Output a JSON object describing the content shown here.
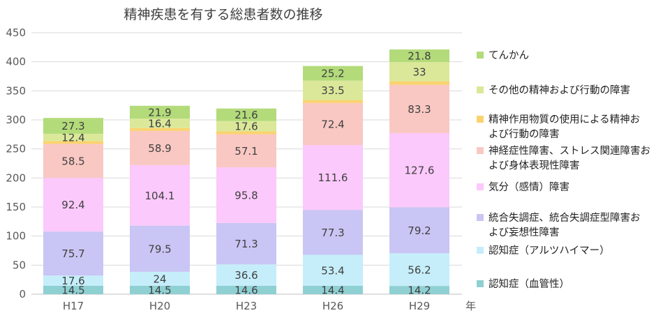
{
  "chart_data": {
    "type": "bar",
    "stacked": true,
    "title": "精神疾患を有する総患者数の推移",
    "xlabel": "年",
    "ylabel": "",
    "ylim": [
      0,
      450
    ],
    "yticks": [
      0,
      50,
      100,
      150,
      200,
      250,
      300,
      350,
      400,
      450
    ],
    "grid": true,
    "legend_position": "right",
    "categories": [
      "H17",
      "H20",
      "H23",
      "H26",
      "H29"
    ],
    "series": [
      {
        "name": "認知症（血管性）",
        "color": "#8fd0d3",
        "values": [
          14.5,
          14.5,
          14.6,
          14.4,
          14.2
        ]
      },
      {
        "name": "認知症（アルツハイマー）",
        "color": "#c5eefa",
        "values": [
          17.6,
          24,
          36.6,
          53.4,
          56.2
        ]
      },
      {
        "name": "統合失調症、統合失調症型障害および妄想性障害",
        "color": "#c9c5f4",
        "values": [
          75.7,
          79.5,
          71.3,
          77.3,
          79.2
        ]
      },
      {
        "name": "気分（感情）障害",
        "color": "#fbc9fb",
        "values": [
          92.4,
          104.1,
          95.8,
          111.6,
          127.6
        ]
      },
      {
        "name": "神経症性障害、ストレス関連障害および身体表現性障害",
        "color": "#f9c8c3",
        "values": [
          58.5,
          58.9,
          57.1,
          72.4,
          83.3
        ]
      },
      {
        "name": "精神作用物質の使用による精神および行動の障害",
        "color": "#fad36e",
        "values": [
          5.0,
          5.0,
          5.0,
          5.0,
          6.0
        ]
      },
      {
        "name": "その他の精神および行動の障害",
        "color": "#dbe89a",
        "values": [
          12.4,
          16.4,
          17.6,
          33.5,
          33
        ]
      },
      {
        "name": "てんかん",
        "color": "#b3db7a",
        "values": [
          27.3,
          21.9,
          21.6,
          25.2,
          21.8
        ]
      }
    ],
    "data_labels": [
      {
        "series": 0,
        "labels": [
          "14.5",
          "14.5",
          "14.6",
          "14.4",
          "14.2"
        ]
      },
      {
        "series": 1,
        "labels": [
          "17.6",
          "24",
          "36.6",
          "53.4",
          "56.2"
        ]
      },
      {
        "series": 2,
        "labels": [
          "75.7",
          "79.5",
          "71.3",
          "77.3",
          "79.2"
        ]
      },
      {
        "series": 3,
        "labels": [
          "92.4",
          "104.1",
          "95.8",
          "111.6",
          "127.6"
        ]
      },
      {
        "series": 4,
        "labels": [
          "58.5",
          "58.9",
          "57.1",
          "72.4",
          "83.3"
        ]
      },
      {
        "series": 6,
        "labels": [
          "12.4",
          "16.4",
          "17.6",
          "33.5",
          "33"
        ]
      },
      {
        "series": 7,
        "labels": [
          "27.3",
          "21.9",
          "21.6",
          "25.2",
          "21.8"
        ]
      }
    ],
    "legend": [
      {
        "series": 7,
        "lines": [
          "てんかん"
        ]
      },
      {
        "series": 6,
        "lines": [
          "その他の精神および行動の障害"
        ]
      },
      {
        "series": 5,
        "lines": [
          "精神作用物質の使用による精神お",
          "よび行動の障害"
        ]
      },
      {
        "series": 4,
        "lines": [
          "神経症性障害、ストレス関連障害お",
          "よび身体表現性障害"
        ]
      },
      {
        "series": 3,
        "lines": [
          "気分（感情）障害"
        ]
      },
      {
        "series": 2,
        "lines": [
          "統合失調症、統合失調症型障害お",
          "よび妄想性障害"
        ]
      },
      {
        "series": 1,
        "lines": [
          "認知症（アルツハイマー）"
        ]
      },
      {
        "series": 0,
        "lines": [
          "認知症（血管性）"
        ]
      }
    ]
  }
}
